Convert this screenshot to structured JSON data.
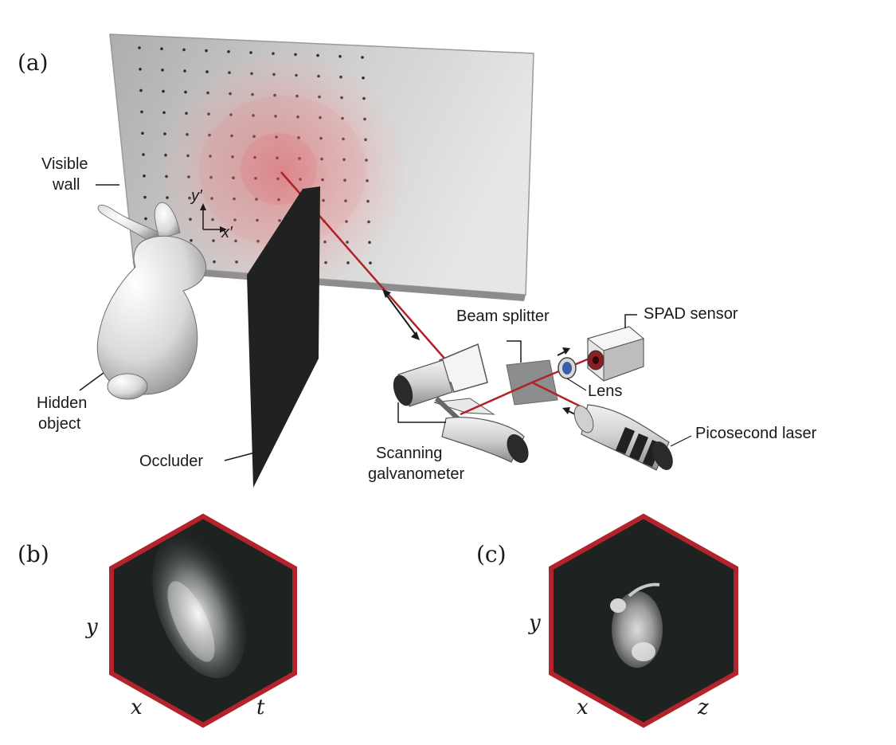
{
  "panels": {
    "a": {
      "label": "(a)"
    },
    "b": {
      "label": "(b)",
      "axes": {
        "x": "x",
        "y": "y",
        "t": "t"
      }
    },
    "c": {
      "label": "(c)",
      "axes": {
        "x": "x",
        "y": "y",
        "z": "z"
      }
    }
  },
  "labels": {
    "visible_wall_line1": "Visible",
    "visible_wall_line2": "wall",
    "hidden_object_line1": "Hidden",
    "hidden_object_line2": "object",
    "occluder": "Occluder",
    "beam_splitter": "Beam splitter",
    "spad_sensor": "SPAD sensor",
    "lens": "Lens",
    "picosecond_laser": "Picosecond laser",
    "scanning_line1": "Scanning",
    "scanning_line2": "galvanometer",
    "wall_y": "y′",
    "wall_x": "x′"
  },
  "colors": {
    "wall": "#c9c9c9",
    "laser_beam": "#b0222a",
    "hex_border": "#b3232b",
    "hex_fill": "#1e2321",
    "occluder": "#1f2220",
    "glow": "#f07a7a"
  }
}
